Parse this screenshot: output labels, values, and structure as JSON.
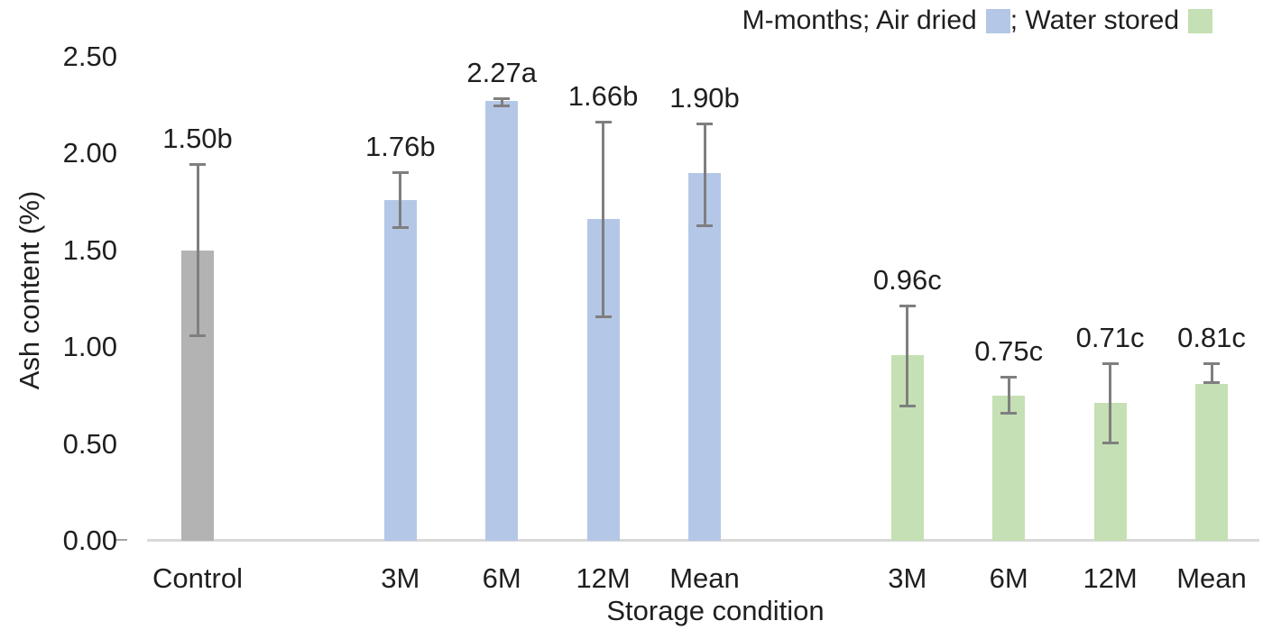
{
  "chart_data": {
    "type": "bar",
    "title": "",
    "xlabel": "Storage condition",
    "ylabel": "Ash content (%)",
    "ylim": [
      0,
      2.5
    ],
    "ytick_step": 0.5,
    "yticks": [
      "0.00",
      "0.50",
      "1.00",
      "1.50",
      "2.00",
      "2.50"
    ],
    "grid": "off",
    "legend": {
      "position": "top-right",
      "part1": "M-months; Air dried",
      "part2": "; Water stored",
      "entries": [
        {
          "name": "Air dried",
          "color": "#b4c7e7"
        },
        {
          "name": "Water stored",
          "color": "#c5e0b4"
        }
      ]
    },
    "bars": [
      {
        "id": "control",
        "category": "Control",
        "group": "Control",
        "value": 1.5,
        "label": "1.50b",
        "err_low": 1.05,
        "err_high": 1.95,
        "color_key": "control",
        "slot": 0
      },
      {
        "id": "air-3m",
        "category": "3M",
        "group": "Air dried",
        "value": 1.76,
        "label": "1.76b",
        "err_low": 1.61,
        "err_high": 1.91,
        "color_key": "air_dried",
        "slot": 2
      },
      {
        "id": "air-6m",
        "category": "6M",
        "group": "Air dried",
        "value": 2.27,
        "label": "2.27a",
        "err_low": 2.24,
        "err_high": 2.29,
        "color_key": "air_dried",
        "slot": 3
      },
      {
        "id": "air-12m",
        "category": "12M",
        "group": "Air dried",
        "value": 1.66,
        "label": "1.66b",
        "err_low": 1.15,
        "err_high": 2.17,
        "color_key": "air_dried",
        "slot": 4
      },
      {
        "id": "air-mean",
        "category": "Mean",
        "group": "Air dried",
        "value": 1.9,
        "label": "1.90b",
        "err_low": 1.62,
        "err_high": 2.16,
        "color_key": "air_dried",
        "slot": 5
      },
      {
        "id": "water-3m",
        "category": "3M",
        "group": "Water stored",
        "value": 0.96,
        "label": "0.96c",
        "err_low": 0.69,
        "err_high": 1.22,
        "color_key": "water_stored",
        "slot": 7
      },
      {
        "id": "water-6m",
        "category": "6M",
        "group": "Water stored",
        "value": 0.75,
        "label": "0.75c",
        "err_low": 0.65,
        "err_high": 0.85,
        "color_key": "water_stored",
        "slot": 8
      },
      {
        "id": "water-12m",
        "category": "12M",
        "group": "Water stored",
        "value": 0.71,
        "label": "0.71c",
        "err_low": 0.5,
        "err_high": 0.92,
        "color_key": "water_stored",
        "slot": 9
      },
      {
        "id": "water-mean",
        "category": "Mean",
        "group": "Water stored",
        "value": 0.81,
        "label": "0.81c",
        "err_low": 0.81,
        "err_high": 0.92,
        "color_key": "water_stored",
        "slot": 10
      }
    ],
    "colors": {
      "control": "#b3b3b3",
      "air_dried": "#b4c7e7",
      "water_stored": "#c5e0b4",
      "error_bar": "#7f7f7f",
      "axis_line": "#d9d9d9",
      "text": "#1f1f1f"
    }
  }
}
